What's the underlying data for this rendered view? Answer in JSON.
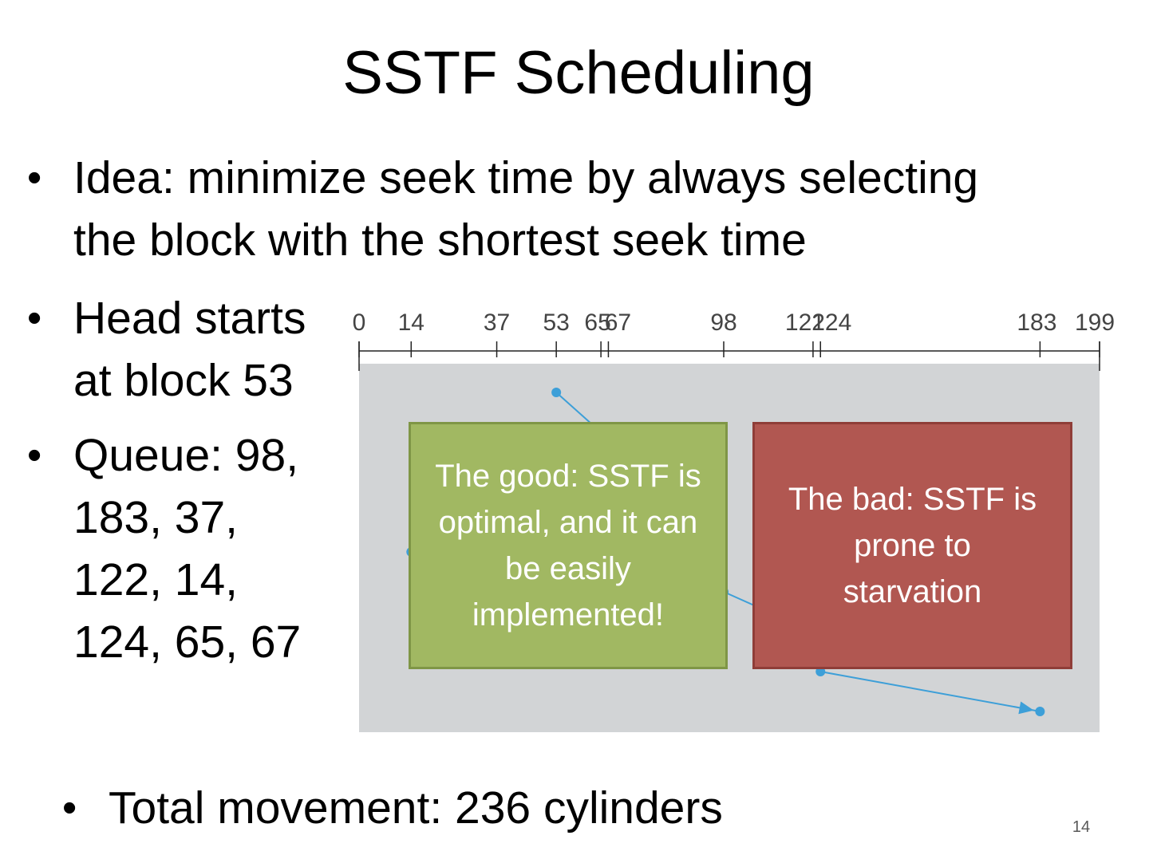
{
  "title": "SSTF Scheduling",
  "bullets": {
    "idea": [
      "Idea: minimize seek time by always selecting",
      "the block with the shortest seek time"
    ],
    "head": [
      "Head starts",
      "at block 53"
    ],
    "queue": [
      "Queue: 98,",
      "183, 37,",
      "122, 14,",
      "124, 65, 67"
    ],
    "total": "Total movement: 236 cylinders",
    "dot": "•"
  },
  "callouts": {
    "good": [
      "The good: SSTF is",
      "optimal, and it can",
      "be easily",
      "implemented!"
    ],
    "bad": [
      "The bad: SSTF is",
      "prone to",
      "starvation"
    ]
  },
  "page_number": "14",
  "diagram": {
    "axis_min": 0,
    "axis_max": 199,
    "ticks": [
      "0",
      "14",
      "37",
      "53",
      "65",
      "67",
      "98",
      "122",
      "124",
      "183",
      "199"
    ],
    "tick_values": [
      0,
      14,
      37,
      53,
      65,
      67,
      98,
      122,
      124,
      183,
      199
    ],
    "head_start": 53,
    "service_order": [
      53,
      65,
      67,
      37,
      14,
      98,
      122,
      124,
      183
    ],
    "colors": {
      "background": "#d2d4d6",
      "path": "#3d9fd8",
      "axis": "#222222"
    }
  }
}
